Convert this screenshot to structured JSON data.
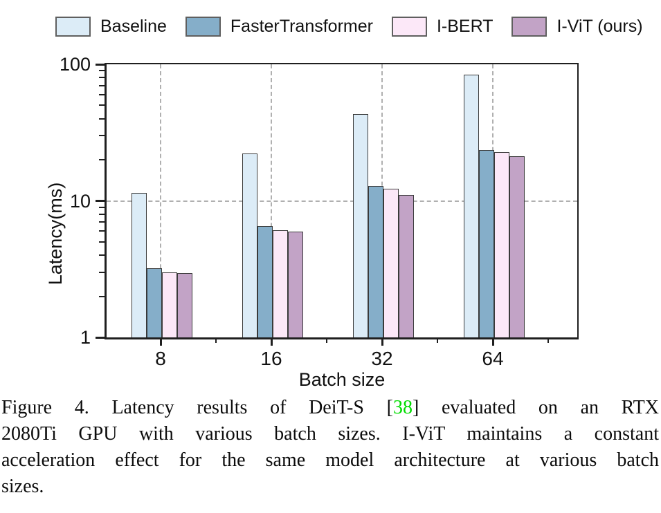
{
  "chart_data": {
    "type": "bar",
    "y_scale": "log",
    "title": "",
    "xlabel": "Batch size",
    "ylabel": "Latency(ms)",
    "ylim": [
      1,
      100
    ],
    "yticks": [
      100,
      10,
      1
    ],
    "categories": [
      "8",
      "16",
      "32",
      "64"
    ],
    "series": [
      {
        "name": "Baseline",
        "color": "#dcecf7",
        "values": [
          11.4,
          22.2,
          43.0,
          84.0
        ]
      },
      {
        "name": "FasterTransformer",
        "color": "#85aec9",
        "values": [
          3.2,
          6.5,
          12.9,
          23.5
        ]
      },
      {
        "name": "I-BERT",
        "color": "#fce8f8",
        "values": [
          3.0,
          6.1,
          12.3,
          22.7
        ]
      },
      {
        "name": "I-ViT (ours)",
        "color": "#c2a3c6",
        "values": [
          2.95,
          5.95,
          11.0,
          21.2
        ]
      }
    ],
    "grid": "dashed gray: horizontal line at y=10, vertical lines at each category center",
    "legend_position": "top"
  },
  "caption": {
    "line1_pre": "Figure 4. Latency results of DeiT-S [",
    "ref": "38",
    "ref_color": "#00dd00",
    "line1_post": "] evaluated on an RTX",
    "line2": "2080Ti GPU with various batch sizes. I-ViT maintains a constant",
    "line3": "acceleration effect for the same model architecture at various batch",
    "line4": "sizes."
  }
}
